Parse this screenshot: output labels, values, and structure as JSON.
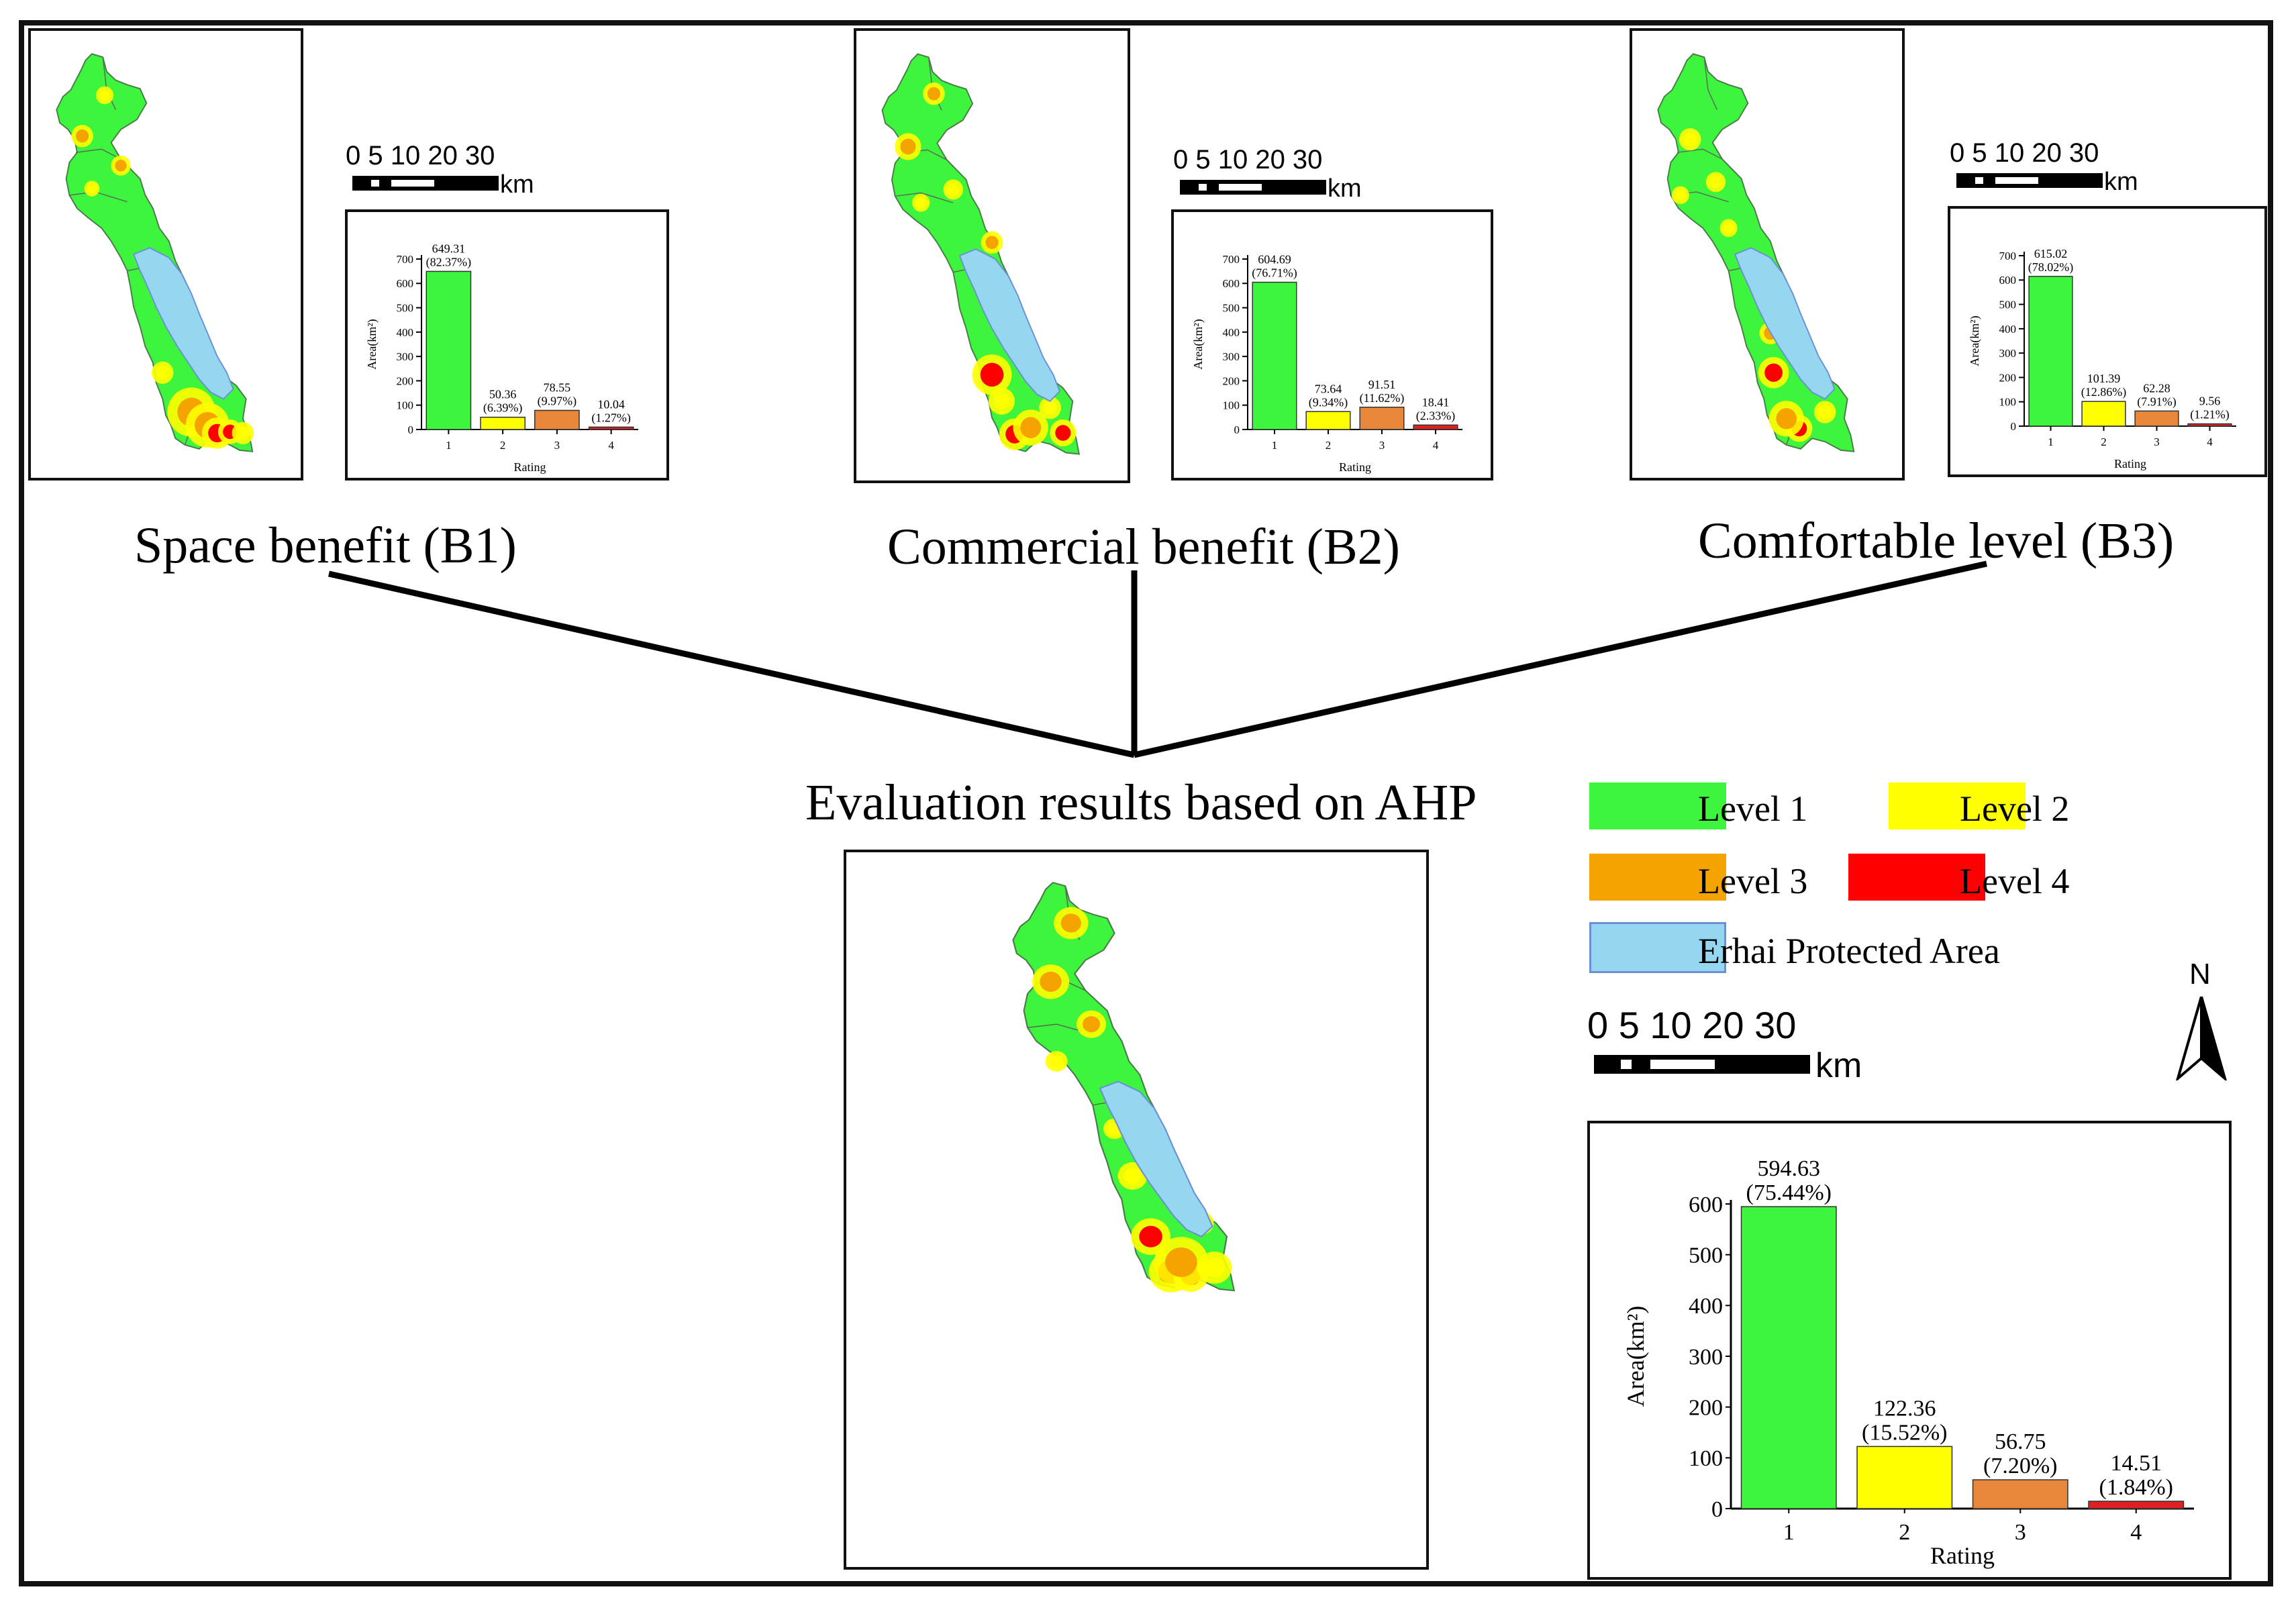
{
  "titles": {
    "b1": "Space benefit (B1)",
    "b2": "Commercial benefit (B2)",
    "b3": "Comfortable level (B3)",
    "ahp": "Evaluation results based on AHP"
  },
  "legend": {
    "level1": "Level 1",
    "level2": "Level 2",
    "level3": "Level 3",
    "level4": "Level 4",
    "erhai": "Erhai Protected Area",
    "colors": {
      "level1": "#3df53d",
      "level2": "#ffff00",
      "level3": "#f5a300",
      "level4": "#ff0000",
      "erhai": "#95d7f0"
    }
  },
  "scale": {
    "ticks": "0 5 10    20    30",
    "unit": "km"
  },
  "north": "N",
  "chart_data": [
    {
      "id": "b1",
      "type": "bar",
      "categories": [
        "1",
        "2",
        "3",
        "4"
      ],
      "values": [
        649.31,
        50.36,
        78.55,
        10.04
      ],
      "labels_value": [
        "649.31",
        "50.36",
        "78.55",
        "10.04"
      ],
      "labels_pct": [
        "(82.37%)",
        "(6.39%)",
        "(9.97%)",
        "(1.27%)"
      ],
      "colors": [
        "#3df53d",
        "#ffff00",
        "#e8873a",
        "#e02020"
      ],
      "xlabel": "Rating",
      "ylabel": "Area(km²)",
      "ylim": [
        0,
        700
      ],
      "yticks": [
        "0",
        "100",
        "200",
        "300",
        "400",
        "500",
        "600",
        "700"
      ]
    },
    {
      "id": "b2",
      "type": "bar",
      "categories": [
        "1",
        "2",
        "3",
        "4"
      ],
      "values": [
        604.69,
        73.64,
        91.51,
        18.41
      ],
      "labels_value": [
        "604.69",
        "73.64",
        "91.51",
        "18.41"
      ],
      "labels_pct": [
        "(76.71%)",
        "(9.34%)",
        "(11.62%)",
        "(2.33%)"
      ],
      "colors": [
        "#3df53d",
        "#ffff00",
        "#e8873a",
        "#e02020"
      ],
      "xlabel": "Rating",
      "ylabel": "Area(km²)",
      "ylim": [
        0,
        700
      ],
      "yticks": [
        "0",
        "100",
        "200",
        "300",
        "400",
        "500",
        "600",
        "700"
      ]
    },
    {
      "id": "b3",
      "type": "bar",
      "categories": [
        "1",
        "2",
        "3",
        "4"
      ],
      "values": [
        615.02,
        101.39,
        62.28,
        9.56
      ],
      "labels_value": [
        "615.02",
        "101.39",
        "62.28",
        "9.56"
      ],
      "labels_pct": [
        "(78.02%)",
        "(12.86%)",
        "(7.91%)",
        "(1.21%)"
      ],
      "colors": [
        "#3df53d",
        "#ffff00",
        "#e8873a",
        "#e02020"
      ],
      "xlabel": "Rating",
      "ylabel": "Area(km²)",
      "ylim": [
        0,
        700
      ],
      "yticks": [
        "0",
        "100",
        "200",
        "300",
        "400",
        "500",
        "600",
        "700"
      ]
    },
    {
      "id": "ahp",
      "type": "bar",
      "categories": [
        "1",
        "2",
        "3",
        "4"
      ],
      "values": [
        594.63,
        122.36,
        56.75,
        14.51
      ],
      "labels_value": [
        "594.63",
        "122.36",
        "56.75",
        "14.51"
      ],
      "labels_pct": [
        "(75.44%)",
        "(15.52%)",
        "(7.20%)",
        "(1.84%)"
      ],
      "colors": [
        "#3df53d",
        "#ffff00",
        "#e8873a",
        "#e02020"
      ],
      "xlabel": "Rating",
      "ylabel": "Area(km²)",
      "ylim": [
        0,
        600
      ],
      "yticks": [
        "0",
        "100",
        "200",
        "300",
        "400",
        "500",
        "600"
      ]
    }
  ]
}
